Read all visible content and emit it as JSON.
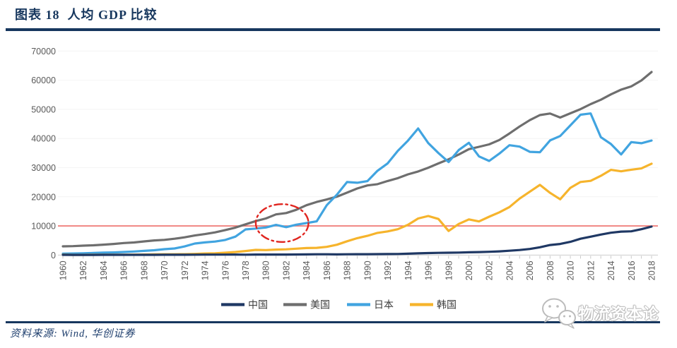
{
  "header": {
    "title": "图表 18  人均 GDP 比较"
  },
  "chart_data": {
    "type": "line",
    "title": "人均 GDP 比较",
    "xlabel": "",
    "ylabel": "",
    "ylim": [
      0,
      70000
    ],
    "grid": "very-faint-horizontal",
    "legend_position": "bottom-center",
    "x": [
      1960,
      1961,
      1962,
      1963,
      1964,
      1965,
      1966,
      1967,
      1968,
      1969,
      1970,
      1971,
      1972,
      1973,
      1974,
      1975,
      1976,
      1977,
      1978,
      1979,
      1980,
      1981,
      1982,
      1983,
      1984,
      1985,
      1986,
      1987,
      1988,
      1989,
      1990,
      1991,
      1992,
      1993,
      1994,
      1995,
      1996,
      1997,
      1998,
      1999,
      2000,
      2001,
      2002,
      2003,
      2004,
      2005,
      2006,
      2007,
      2008,
      2009,
      2010,
      2011,
      2012,
      2013,
      2014,
      2015,
      2016,
      2017,
      2018
    ],
    "x_tick_labels": [
      "1960",
      "1962",
      "1964",
      "1966",
      "1968",
      "1970",
      "1972",
      "1974",
      "1976",
      "1978",
      "1980",
      "1982",
      "1984",
      "1986",
      "1988",
      "1990",
      "1992",
      "1994",
      "1996",
      "1998",
      "2000",
      "2002",
      "2004",
      "2006",
      "2008",
      "2010",
      "2012",
      "2014",
      "2016",
      "2018"
    ],
    "y_tick_labels": [
      "0",
      "10000",
      "20000",
      "30000",
      "40000",
      "50000",
      "60000",
      "70000"
    ],
    "series": [
      {
        "id": "china",
        "name": "中国",
        "color": "#1f3864",
        "values": [
          90,
          76,
          71,
          74,
          85,
          98,
          104,
          97,
          91,
          100,
          113,
          118,
          131,
          157,
          160,
          178,
          165,
          185,
          156,
          184,
          195,
          197,
          203,
          225,
          251,
          294,
          282,
          251,
          284,
          311,
          318,
          333,
          366,
          377,
          473,
          610,
          709,
          782,
          829,
          873,
          959,
          1053,
          1149,
          1289,
          1509,
          1753,
          2099,
          2694,
          3468,
          3832,
          4550,
          5618,
          6317,
          7051,
          7679,
          8067,
          8148,
          8879,
          9771
        ]
      },
      {
        "id": "usa",
        "name": "美国",
        "color": "#6e6e6e",
        "values": [
          3007,
          3067,
          3244,
          3375,
          3574,
          3828,
          4146,
          4336,
          4696,
          5032,
          5234,
          5609,
          6094,
          6726,
          7226,
          7801,
          8592,
          9453,
          10565,
          11674,
          12575,
          13976,
          14434,
          15544,
          17121,
          18237,
          19071,
          20039,
          21417,
          22857,
          23889,
          24342,
          25419,
          26387,
          27695,
          28691,
          29968,
          31459,
          32854,
          34514,
          36335,
          37133,
          37998,
          39490,
          41725,
          44123,
          46302,
          48050,
          48570,
          47195,
          48651,
          50066,
          51784,
          53291,
          55124,
          56763,
          57867,
          59915,
          62805
        ]
      },
      {
        "id": "japan",
        "name": "日本",
        "color": "#41a4e0",
        "values": [
          479,
          564,
          634,
          718,
          836,
          920,
          1058,
          1229,
          1451,
          1669,
          2038,
          2272,
          2967,
          3975,
          4354,
          4659,
          5198,
          6336,
          8822,
          9106,
          9465,
          10361,
          9578,
          10425,
          10985,
          11585,
          17112,
          20745,
          25059,
          24822,
          25371,
          28925,
          31465,
          35766,
          39269,
          43440,
          38437,
          35022,
          31903,
          36027,
          38532,
          33846,
          32289,
          34808,
          37688,
          37217,
          35433,
          35275,
          39339,
          40855,
          44508,
          48168,
          48603,
          40454,
          38109,
          34524,
          38762,
          38387,
          39287
        ]
      },
      {
        "id": "korea",
        "name": "韩国",
        "color": "#f6b42c",
        "values": [
          158,
          94,
          106,
          146,
          124,
          109,
          133,
          161,
          198,
          243,
          279,
          301,
          324,
          406,
          563,
          617,
          834,
          1056,
          1406,
          1784,
          1711,
          1883,
          1992,
          2198,
          2413,
          2482,
          2835,
          3555,
          4754,
          5817,
          6610,
          7637,
          8127,
          8882,
          10385,
          12565,
          13403,
          12398,
          8282,
          10672,
          12257,
          11561,
          13165,
          14673,
          16496,
          19403,
          21743,
          24086,
          21350,
          19143,
          23087,
          25096,
          25467,
          27183,
          29250,
          28732,
          29289,
          29743,
          31363
        ]
      }
    ],
    "annotations": {
      "reference_line": {
        "value": 10000,
        "color": "#ee6f6a"
      },
      "highlight_ellipse": {
        "x_center": 1981.6,
        "y_center": 11000,
        "x_radius_years": 2.6,
        "y_radius_value": 6500,
        "color": "#e0251f",
        "style": "dash-dot"
      }
    }
  },
  "footer": {
    "source": "资料来源: Wind, 华创证券",
    "watermark_text": "物流资本论",
    "watermark_icon": "wechat-icon"
  },
  "colors": {
    "accent_navy": "#17375e",
    "axis_label_gray": "#595959",
    "axis_line_gray": "#d9d9d9"
  }
}
